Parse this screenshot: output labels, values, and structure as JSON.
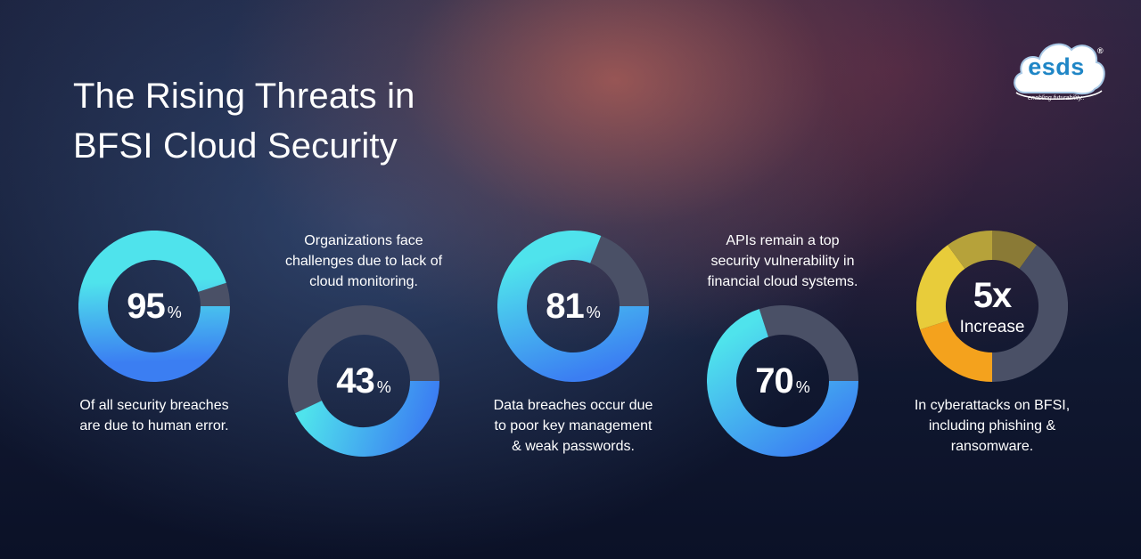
{
  "title_lines": [
    "The Rising Threats in",
    "BFSI Cloud Security"
  ],
  "logo": {
    "name": "esds",
    "registered": "®",
    "tagline": "enabling futurability..",
    "color": "#1f86c6"
  },
  "chart_data": [
    {
      "type": "pie",
      "values": [
        95,
        5
      ],
      "value_label": "95",
      "unit": "%",
      "caption": [
        "Of all security breaches",
        "are due to human error."
      ],
      "colors": {
        "filled_start": "#3b7ef2",
        "filled_end": "#4fe3ec",
        "remaining": "#4a5066"
      }
    },
    {
      "type": "pie",
      "values": [
        43,
        57
      ],
      "value_label": "43",
      "unit": "%",
      "caption": [
        "Organizations face",
        "challenges due to lack of",
        "cloud monitoring."
      ],
      "colors": {
        "filled_start": "#3b7ef2",
        "filled_end": "#4fe3ec",
        "remaining": "#4a5066"
      }
    },
    {
      "type": "pie",
      "values": [
        81,
        19
      ],
      "value_label": "81",
      "unit": "%",
      "caption": [
        "Data breaches occur due",
        "to poor key management",
        "& weak passwords."
      ],
      "colors": {
        "filled_start": "#3b7ef2",
        "filled_end": "#4fe3ec",
        "remaining": "#4a5066"
      }
    },
    {
      "type": "pie",
      "values": [
        70,
        30
      ],
      "value_label": "70",
      "unit": "%",
      "caption": [
        "APIs remain a top",
        "security vulnerability in",
        "financial cloud systems."
      ],
      "colors": {
        "filled_start": "#3b7ef2",
        "filled_end": "#4fe3ec",
        "remaining": "#4a5066"
      }
    },
    {
      "type": "pie",
      "values": [
        20,
        20,
        10,
        10,
        40
      ],
      "value_label": "5x",
      "unit": "",
      "sub_label": "Increase",
      "caption": [
        "In cyberattacks on BFSI,",
        "including phishing &",
        "ransomware."
      ],
      "colors": {
        "segments": [
          "#f4a21d",
          "#e8cc3a",
          "#b6a23a",
          "#8a7a36",
          "#4a5066"
        ]
      }
    }
  ]
}
